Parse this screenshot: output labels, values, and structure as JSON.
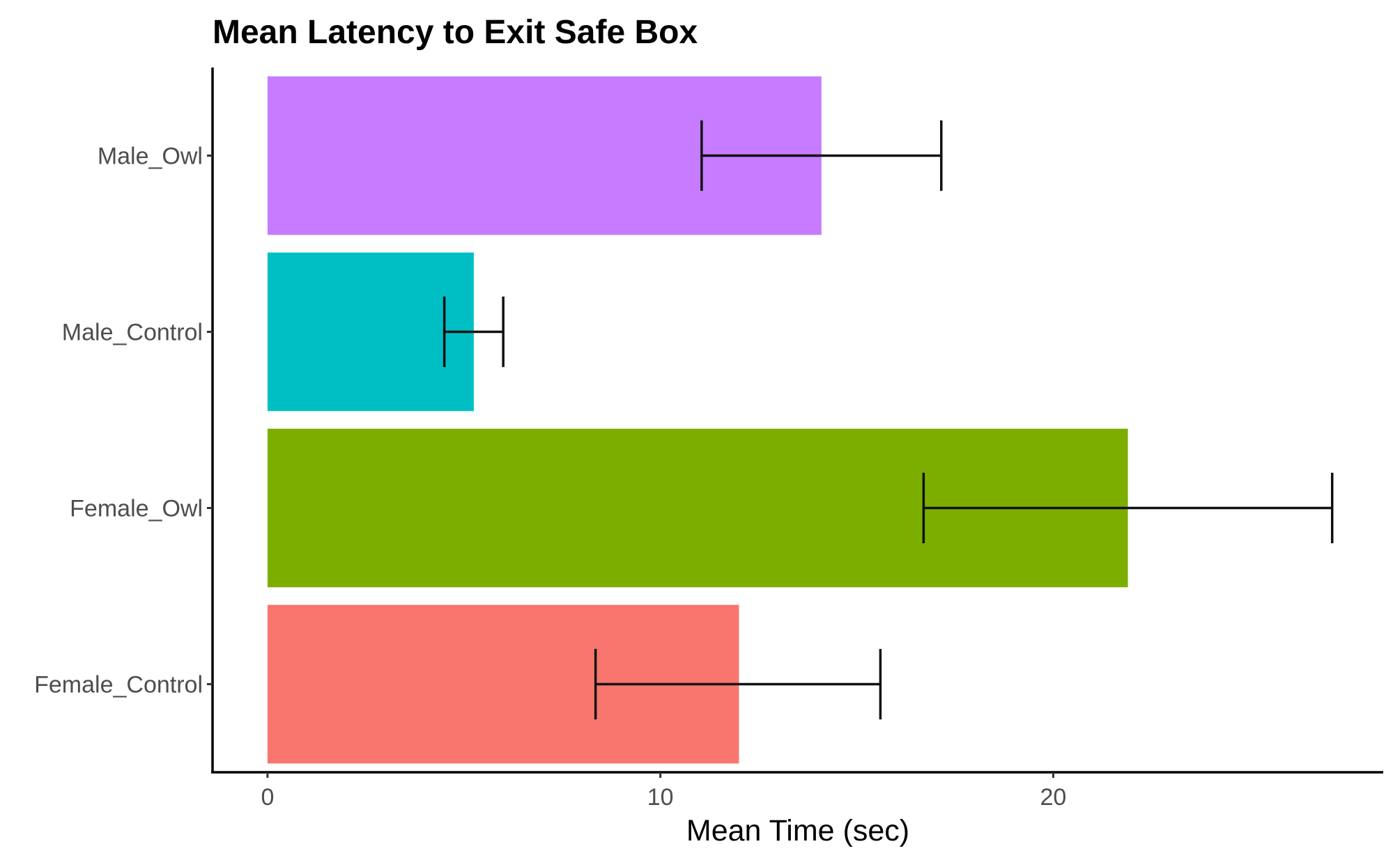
{
  "chart_data": {
    "type": "bar",
    "orientation": "horizontal",
    "title": "Mean Latency to Exit Safe Box",
    "xlabel": "Mean Time (sec)",
    "ylabel": "",
    "xlim": [
      -1.4,
      28.4
    ],
    "xticks": [
      0,
      10,
      20
    ],
    "categories": [
      "Female_Control",
      "Female_Owl",
      "Male_Control",
      "Male_Owl"
    ],
    "values": [
      12.0,
      21.9,
      5.25,
      14.1
    ],
    "error_low": [
      8.35,
      16.7,
      4.5,
      11.05
    ],
    "error_high": [
      15.6,
      27.1,
      6.0,
      17.15
    ],
    "colors": [
      "#F8766D",
      "#7CAE00",
      "#00BFC4",
      "#C77CFF"
    ],
    "legend": "none",
    "grid": false
  }
}
